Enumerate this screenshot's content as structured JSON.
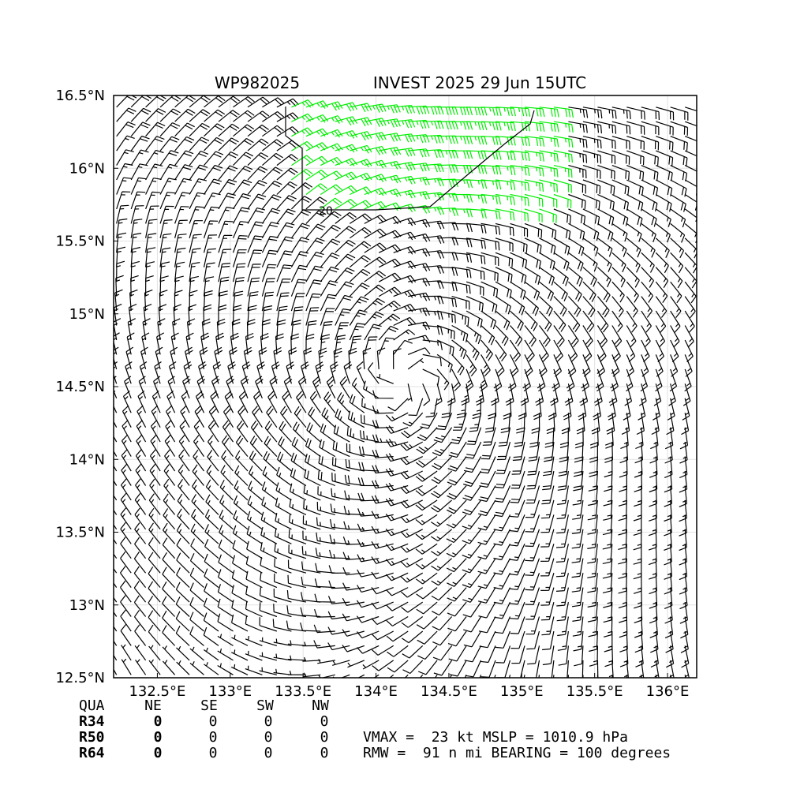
{
  "chart_data": {
    "type": "wind_barbs",
    "storm_id": "WP982025",
    "title": "INVEST 2025 29 Jun 15UTC",
    "xlim": [
      132.2,
      136.2
    ],
    "ylim": [
      12.5,
      16.5
    ],
    "x_ticks": [
      132.5,
      133.0,
      133.5,
      134.0,
      134.5,
      135.0,
      135.5,
      136.0
    ],
    "x_tick_labels": [
      "132.5°E",
      "133°E",
      "133.5°E",
      "134°E",
      "134.5°E",
      "135°E",
      "135.5°E",
      "136°E"
    ],
    "y_ticks": [
      12.5,
      13.0,
      13.5,
      14.0,
      14.5,
      15.0,
      15.5,
      16.0,
      16.5
    ],
    "y_tick_labels": [
      "12.5°N",
      "13°N",
      "13.5°N",
      "14°N",
      "14.5°N",
      "15°N",
      "15.5°N",
      "16°N",
      "16.5°N"
    ],
    "grid": true,
    "circulation_center": [
      134.2,
      14.55
    ],
    "contour_label": "20",
    "barb_colors": {
      "default": "#000000",
      "above_20kt": "#00ee00"
    },
    "barb_spacing_deg": 0.1
  },
  "quadrant_table": {
    "headers": [
      "QUA",
      "NE",
      "SE",
      "SW",
      "NW"
    ],
    "rows": [
      {
        "label": "R34",
        "values": [
          "0",
          "0",
          "0",
          "0"
        ]
      },
      {
        "label": "R50",
        "values": [
          "0",
          "0",
          "0",
          "0"
        ]
      },
      {
        "label": "R64",
        "values": [
          "0",
          "0",
          "0",
          "0"
        ]
      }
    ]
  },
  "summary": {
    "line1": "VMAX =  23 kt MSLP = 1010.9 hPa",
    "line2": "RMW =  91 n mi BEARING = 100 degrees"
  }
}
